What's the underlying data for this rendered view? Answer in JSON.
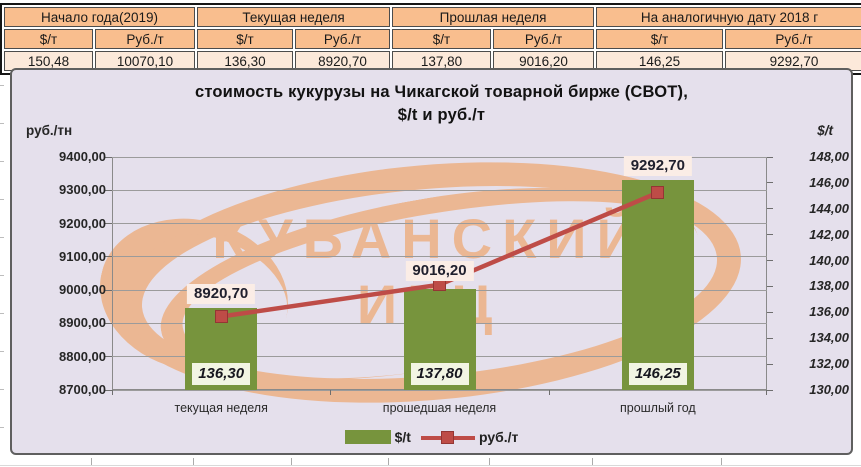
{
  "table": {
    "groups": [
      {
        "label": "Начало года(2019)",
        "sub": [
          "$/т",
          "Руб./т"
        ]
      },
      {
        "label": "Текущая неделя",
        "sub": [
          "$/т",
          "Руб./т"
        ]
      },
      {
        "label": "Прошлая неделя",
        "sub": [
          "$/т",
          "Руб./т"
        ]
      },
      {
        "label": "На аналогичную дату 2018 г",
        "sub": [
          "$/т",
          "Руб./т"
        ]
      }
    ],
    "values": [
      "150,48",
      "10070,10",
      "136,30",
      "8920,70",
      "137,80",
      "9016,20",
      "146,25",
      "9292,70"
    ]
  },
  "chart_data": {
    "type": "bar+line",
    "title_line1": "стоимость кукурузы на Чикагской товарной бирже (СВОТ),",
    "title_line2": "$/t и руб./т",
    "categories": [
      "текущая неделя",
      "прошедшая неделя",
      "прошлый год"
    ],
    "series": [
      {
        "name": "$/t",
        "type": "bar",
        "axis": "right",
        "color": "#77943D",
        "values": [
          136.3,
          137.8,
          146.25
        ],
        "labels": [
          "136,30",
          "137,80",
          "146,25"
        ]
      },
      {
        "name": "руб./т",
        "type": "line",
        "axis": "left",
        "color": "#BE4C47",
        "values": [
          8920.7,
          9016.2,
          9292.7
        ],
        "labels": [
          "8920,70",
          "9016,20",
          "9292,70"
        ]
      }
    ],
    "left_axis": {
      "title": "руб./тн",
      "min": 8700,
      "max": 9400,
      "ticks": [
        9400,
        9300,
        9200,
        9100,
        9000,
        8900,
        8800,
        8700
      ],
      "tick_labels": [
        "9400,00",
        "9300,00",
        "9200,00",
        "9100,00",
        "9000,00",
        "8900,00",
        "8800,00",
        "8700,00"
      ]
    },
    "right_axis": {
      "title": "$/t",
      "min": 130,
      "max": 148,
      "ticks": [
        148,
        146,
        144,
        142,
        140,
        138,
        136,
        134,
        132,
        130
      ],
      "tick_labels": [
        "148,00",
        "146,00",
        "144,00",
        "142,00",
        "140,00",
        "138,00",
        "136,00",
        "134,00",
        "132,00",
        "130,00"
      ]
    },
    "grid": true,
    "legend_position": "bottom"
  },
  "watermark": {
    "line1": "КУБАНСКИЙ",
    "line2": "ИКЦ",
    "color": "#EDAD7E"
  },
  "colors": {
    "table_header_bg": "#F9BE8E",
    "table_value_bg": "#FCE9DA",
    "chart_bg": "#E5E0EC",
    "gridline": "#9B9B9B",
    "bar_green": "#77943D",
    "line_red": "#BE4C47",
    "bar_label_bg": "#F2F5E3",
    "line_label_bg": "#FBEDE6"
  }
}
